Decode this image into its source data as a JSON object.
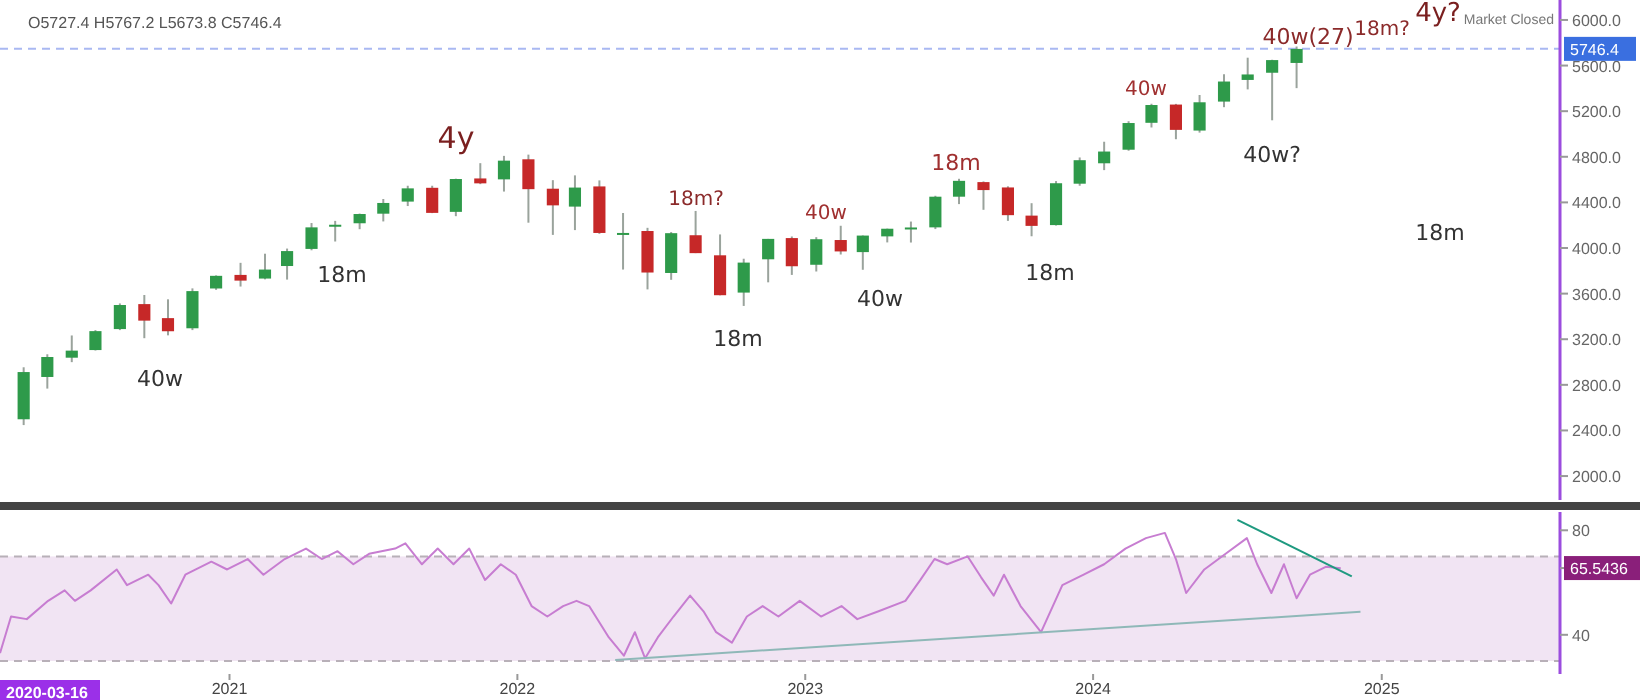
{
  "chart_data": [
    {
      "type": "candlestick",
      "xlim": [
        "2020-03-16",
        "2025-08-15"
      ],
      "ylim": [
        1790,
        6175
      ],
      "tick_labels": "y",
      "yticks": [
        {
          "value": 2000,
          "label": "2000.0"
        },
        {
          "value": 2400,
          "label": "2400.0"
        },
        {
          "value": 2800,
          "label": "2800.0"
        },
        {
          "value": 3200,
          "label": "3200.0"
        },
        {
          "value": 3600,
          "label": "3600.0"
        },
        {
          "value": 4000,
          "label": "4000.0"
        },
        {
          "value": 4400,
          "label": "4400.0"
        },
        {
          "value": 4800,
          "label": "4800.0"
        },
        {
          "value": 5200,
          "label": "5200.0"
        },
        {
          "value": 5600,
          "label": "5600.0"
        },
        {
          "value": 6000,
          "label": "6000.0"
        }
      ],
      "x": [
        "2020-04-15",
        "2020-05-15",
        "2020-06-15",
        "2020-07-15",
        "2020-08-15",
        "2020-09-15",
        "2020-10-15",
        "2020-11-15",
        "2020-12-15",
        "2021-01-15",
        "2021-02-15",
        "2021-03-15",
        "2021-04-15",
        "2021-05-15",
        "2021-06-15",
        "2021-07-15",
        "2021-08-15",
        "2021-09-15",
        "2021-10-15",
        "2021-11-15",
        "2021-12-15",
        "2022-01-15",
        "2022-02-15",
        "2022-03-15",
        "2022-04-15",
        "2022-05-15",
        "2022-06-15",
        "2022-07-15",
        "2022-08-15",
        "2022-09-15",
        "2022-10-15",
        "2022-11-15",
        "2022-12-15",
        "2023-01-15",
        "2023-02-15",
        "2023-03-15",
        "2023-04-15",
        "2023-05-15",
        "2023-06-15",
        "2023-07-15",
        "2023-08-15",
        "2023-09-15",
        "2023-10-15",
        "2023-11-15",
        "2023-12-15",
        "2024-01-15",
        "2024-02-15",
        "2024-03-15",
        "2024-04-15",
        "2024-05-15",
        "2024-06-15",
        "2024-07-15",
        "2024-08-15",
        "2024-09-15"
      ],
      "ohlc": [
        [
          2498,
          2954,
          2447,
          2912
        ],
        [
          2869,
          3068,
          2767,
          3044
        ],
        [
          3038,
          3233,
          2999,
          3100
        ],
        [
          3105,
          3280,
          3101,
          3271
        ],
        [
          3289,
          3514,
          3280,
          3500
        ],
        [
          3508,
          3588,
          3209,
          3363
        ],
        [
          3385,
          3550,
          3234,
          3270
        ],
        [
          3296,
          3646,
          3280,
          3622
        ],
        [
          3645,
          3760,
          3633,
          3756
        ],
        [
          3764,
          3870,
          3662,
          3714
        ],
        [
          3732,
          3950,
          3725,
          3811
        ],
        [
          3842,
          3995,
          3723,
          3973
        ],
        [
          3992,
          4219,
          3980,
          4181
        ],
        [
          4192,
          4238,
          4057,
          4204
        ],
        [
          4217,
          4302,
          4165,
          4298
        ],
        [
          4301,
          4430,
          4233,
          4395
        ],
        [
          4407,
          4546,
          4368,
          4523
        ],
        [
          4528,
          4546,
          4306,
          4308
        ],
        [
          4317,
          4608,
          4279,
          4605
        ],
        [
          4610,
          4744,
          4560,
          4567
        ],
        [
          4602,
          4808,
          4495,
          4766
        ],
        [
          4778,
          4819,
          4222,
          4516
        ],
        [
          4520,
          4595,
          4115,
          4374
        ],
        [
          4363,
          4637,
          4157,
          4530
        ],
        [
          4540,
          4593,
          4124,
          4132
        ],
        [
          4131,
          4307,
          3811,
          4132
        ],
        [
          4149,
          4177,
          3637,
          3785
        ],
        [
          3781,
          4140,
          3721,
          4130
        ],
        [
          4112,
          4325,
          3955,
          3955
        ],
        [
          3936,
          4119,
          3585,
          3586
        ],
        [
          3609,
          3906,
          3492,
          3872
        ],
        [
          3901,
          4080,
          3699,
          4080
        ],
        [
          4087,
          4101,
          3764,
          3840
        ],
        [
          3853,
          4095,
          3794,
          4077
        ],
        [
          4070,
          4195,
          3943,
          3970
        ],
        [
          3964,
          4110,
          3809,
          4109
        ],
        [
          4102,
          4170,
          4049,
          4169
        ],
        [
          4166,
          4232,
          4048,
          4180
        ],
        [
          4181,
          4458,
          4166,
          4450
        ],
        [
          4450,
          4607,
          4385,
          4589
        ],
        [
          4578,
          4584,
          4335,
          4508
        ],
        [
          4531,
          4541,
          4238,
          4288
        ],
        [
          4284,
          4393,
          4103,
          4194
        ],
        [
          4201,
          4587,
          4197,
          4568
        ],
        [
          4564,
          4794,
          4546,
          4770
        ],
        [
          4743,
          4932,
          4683,
          4846
        ],
        [
          4862,
          5112,
          4853,
          5096
        ],
        [
          5098,
          5265,
          5057,
          5254
        ],
        [
          5258,
          5264,
          4954,
          5036
        ],
        [
          5030,
          5342,
          5012,
          5278
        ],
        [
          5284,
          5524,
          5235,
          5460
        ],
        [
          5474,
          5669,
          5391,
          5522
        ],
        [
          5537,
          5651,
          5120,
          5648
        ],
        [
          5623,
          5767,
          5402,
          5746
        ]
      ],
      "ref_lines": [
        {
          "axis": "y",
          "value": 5746.4,
          "label": "5746.4",
          "color": "#a9b8f2",
          "line_style": "dashed"
        }
      ],
      "annotations": [
        "O5727.4  H5767.2  L5673.8  C5746.4",
        "Market Closed",
        "40w",
        "18m",
        "4y",
        "18m?",
        "18m",
        "40w",
        "40w",
        "18m",
        "18m",
        "40w",
        "40w?",
        "40w(27)",
        "18m?",
        "4y?",
        "18m"
      ]
    },
    {
      "type": "line",
      "xlim": [
        "2020-03-16",
        "2025-08-15"
      ],
      "ylim": [
        25,
        87
      ],
      "yticks": [
        40,
        {
          "value": 65.5436,
          "label": "65.5436"
        },
        80
      ],
      "xticks": [
        {
          "value": "2021-01-01",
          "label": "2021"
        },
        {
          "value": "2022-01-01",
          "label": "2022"
        },
        {
          "value": "2023-01-01",
          "label": "2023"
        },
        {
          "value": "2024-01-01",
          "label": "2024"
        },
        {
          "value": "2025-01-01",
          "label": "2025"
        }
      ],
      "bands": [
        {
          "axis": "y",
          "from": 30,
          "to": 70,
          "color": "#f1e4f3"
        }
      ],
      "ref_lines": [
        {
          "axis": "y",
          "value": 70,
          "color": "#b8b0b8",
          "line_style": "dashed"
        },
        {
          "axis": "y",
          "value": 30,
          "color": "#b8b0b8",
          "line_style": "dashed"
        }
      ],
      "annotations": [
        "2020-03-16"
      ],
      "series": [
        {
          "color": "#c77dd1",
          "x": [
            "2020-03-16",
            "2020-03-30",
            "2020-04-19",
            "2020-05-16",
            "2020-06-06",
            "2020-06-19",
            "2020-07-09",
            "2020-08-11",
            "2020-08-24",
            "2020-09-20",
            "2020-10-03",
            "2020-10-19",
            "2020-11-06",
            "2020-12-09",
            "2020-12-29",
            "2021-01-24",
            "2021-02-13",
            "2021-03-12",
            "2021-04-08",
            "2021-04-28",
            "2021-05-18",
            "2021-06-07",
            "2021-06-27",
            "2021-07-30",
            "2021-08-12",
            "2021-09-02",
            "2021-09-22",
            "2021-10-12",
            "2021-11-01",
            "2021-11-21",
            "2021-12-11",
            "2021-12-30",
            "2022-01-19",
            "2022-02-08",
            "2022-02-28",
            "2022-03-17",
            "2022-04-02",
            "2022-04-27",
            "2022-05-16",
            "2022-05-30",
            "2022-06-12",
            "2022-06-28",
            "2022-07-18",
            "2022-08-08",
            "2022-08-25",
            "2022-09-10",
            "2022-09-30",
            "2022-10-19",
            "2022-11-08",
            "2022-11-28",
            "2022-12-25",
            "2023-01-21",
            "2023-02-16",
            "2023-03-08",
            "2023-04-04",
            "2023-05-08",
            "2023-05-27",
            "2023-06-14",
            "2023-06-30",
            "2023-07-26",
            "2023-08-12",
            "2023-08-28",
            "2023-09-10",
            "2023-10-01",
            "2023-10-27",
            "2023-11-23",
            "2023-12-20",
            "2024-01-15",
            "2024-02-11",
            "2024-03-08",
            "2024-04-01",
            "2024-04-15",
            "2024-04-28",
            "2024-05-21",
            "2024-06-17",
            "2024-07-14",
            "2024-07-27",
            "2024-08-14",
            "2024-08-30",
            "2024-09-15",
            "2024-10-02",
            "2024-10-22",
            "2024-11-10"
          ],
          "values": [
            33,
            47,
            46,
            53,
            57,
            53,
            57,
            65,
            59,
            63,
            59,
            52,
            63,
            68,
            65,
            69,
            63,
            69,
            73,
            69,
            72,
            67,
            71,
            73,
            75,
            67,
            73,
            67,
            73,
            61,
            67,
            63,
            51,
            47,
            51,
            53,
            51,
            39,
            32,
            41,
            31,
            39,
            47,
            55,
            49,
            41,
            37,
            47,
            51,
            47,
            53,
            47,
            51,
            46,
            49,
            53,
            61,
            69,
            67,
            70,
            62,
            55,
            63,
            51,
            41,
            59,
            63,
            67,
            73,
            77,
            79,
            69,
            56,
            65,
            71,
            77,
            67,
            56,
            67,
            54,
            63,
            66,
            65.5
          ]
        },
        {
          "type": "line",
          "color": "#1f9a80",
          "x": [
            "2024-07-02",
            "2024-11-24"
          ],
          "values": [
            84,
            62.4
          ]
        },
        {
          "type": "line",
          "color": "#8fb8b8",
          "x": [
            "2022-05-05",
            "2024-12-05"
          ],
          "values": [
            30.4,
            48.8
          ]
        }
      ]
    }
  ]
}
